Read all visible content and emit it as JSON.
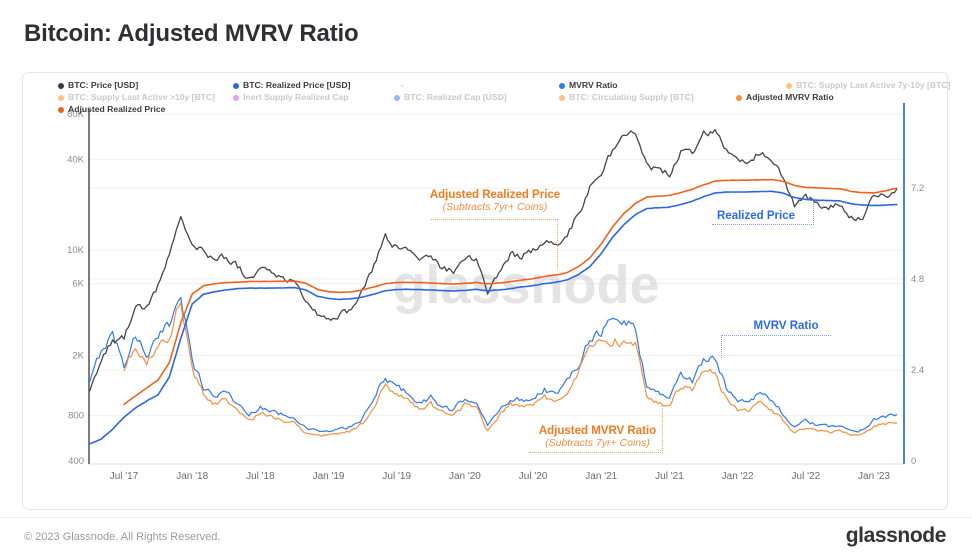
{
  "page": {
    "title": "Bitcoin: Adjusted MVRV Ratio",
    "watermark": "glassnode",
    "brand": "glassnode",
    "footer": "© 2023 Glassnode. All Rights Reserved."
  },
  "colors": {
    "btc_price": "#45454a",
    "realized_price": "#2d66e2",
    "adjusted_realized_price": "#f1621d",
    "mvrv": "#2f7af2",
    "adjusted_mvrv": "#f78f3f",
    "right_axis": "#4b7ff5",
    "left_axis": "#5a5a60",
    "grid": "#f0f0f2",
    "annotation_orange": "#f4791f",
    "annotation_blue": "#2b6af0"
  },
  "legend": {
    "items": [
      {
        "label": "BTC: Price [USD]",
        "color": "#3a3a3e",
        "active": true,
        "dot": true
      },
      {
        "label": "BTC: Realized Price [USD]",
        "color": "#2d66e2",
        "active": true,
        "dot": true
      },
      {
        "label": "-",
        "color": "#9a9aa0",
        "active": false,
        "dot": false
      },
      {
        "label": "MVRV Ratio",
        "color": "#2f7af2",
        "active": true,
        "dot": true
      },
      {
        "label": "BTC: Supply Last Active 7y-10y [BTC]",
        "color": "#f7931a",
        "active": false,
        "dot": true
      },
      {
        "label": "BTC: Supply Last Active >10y [BTC]",
        "color": "#f7931a",
        "active": false,
        "dot": true
      },
      {
        "label": "Inert Supply Realized Cap",
        "color": "#d14fe8",
        "active": false,
        "dot": true
      },
      {
        "label": "BTC: Realized Cap [USD]",
        "color": "#3b82f6",
        "active": false,
        "dot": true
      },
      {
        "label": "BTC: Circulating Supply [BTC]",
        "color": "#f7931a",
        "active": false,
        "dot": true
      },
      {
        "label": "Adjusted MVRV Ratio",
        "color": "#f78f3f",
        "active": true,
        "dot": true
      },
      {
        "label": "Adjusted Realized Price",
        "color": "#f1621d",
        "active": true,
        "dot": true
      }
    ]
  },
  "annotations": {
    "adjusted_realized_price": {
      "line1": "Adjusted Realized Price",
      "line2": "(Subtracts 7yr+ Coins)"
    },
    "realized_price": {
      "label": "Realized Price"
    },
    "mvrv": {
      "label": "MVRV Ratio"
    },
    "adjusted_mvrv": {
      "line1": "Adjusted MVRV Ratio",
      "line2": "(Subtracts 7yr+ Coins)"
    }
  },
  "chart_data": {
    "type": "line",
    "title": "Bitcoin: Adjusted MVRV Ratio",
    "x_ticks": [
      "Jul '17",
      "Jan '18",
      "Jul '18",
      "Jan '19",
      "Jul '19",
      "Jan '20",
      "Jul '20",
      "Jan '21",
      "Jul '21",
      "Jan '22",
      "Jul '22",
      "Jan '23"
    ],
    "y_axis_left": {
      "scale": "log",
      "unit": "USD",
      "ticks": [
        {
          "label": "80K",
          "value": 80000
        },
        {
          "label": "40K",
          "value": 40000
        },
        {
          "label": "10K",
          "value": 10000
        },
        {
          "label": "6K",
          "value": 6000
        },
        {
          "label": "2K",
          "value": 2000
        },
        {
          "label": "800",
          "value": 800
        },
        {
          "label": "400",
          "value": 400
        }
      ]
    },
    "y_axis_right": {
      "scale": "linear",
      "unit": "ratio",
      "ticks": [
        {
          "label": "7.2",
          "value": 7.2
        },
        {
          "label": "4.8",
          "value": 4.8
        },
        {
          "label": "2.4",
          "value": 2.4
        },
        {
          "label": "0",
          "value": 0
        }
      ]
    },
    "months": [
      "2017-04",
      "2017-05",
      "2017-06",
      "2017-07",
      "2017-08",
      "2017-09",
      "2017-10",
      "2017-11",
      "2017-12",
      "2018-01",
      "2018-02",
      "2018-03",
      "2018-04",
      "2018-05",
      "2018-06",
      "2018-07",
      "2018-08",
      "2018-09",
      "2018-10",
      "2018-11",
      "2018-12",
      "2019-01",
      "2019-02",
      "2019-03",
      "2019-04",
      "2019-05",
      "2019-06",
      "2019-07",
      "2019-08",
      "2019-09",
      "2019-10",
      "2019-11",
      "2019-12",
      "2020-01",
      "2020-02",
      "2020-03",
      "2020-04",
      "2020-05",
      "2020-06",
      "2020-07",
      "2020-08",
      "2020-09",
      "2020-10",
      "2020-11",
      "2020-12",
      "2021-01",
      "2021-02",
      "2021-03",
      "2021-04",
      "2021-05",
      "2021-06",
      "2021-07",
      "2021-08",
      "2021-09",
      "2021-10",
      "2021-11",
      "2021-12",
      "2022-01",
      "2022-02",
      "2022-03",
      "2022-04",
      "2022-05",
      "2022-06",
      "2022-07",
      "2022-08",
      "2022-09",
      "2022-10",
      "2022-11",
      "2022-12",
      "2023-01",
      "2023-02",
      "2023-03"
    ],
    "series": [
      {
        "name": "MVRV Ratio",
        "axis": "ratio",
        "style": "noisy",
        "color": "#2f7af2",
        "values": [
          2.05,
          2.95,
          3.35,
          2.55,
          3.3,
          2.85,
          3.2,
          3.6,
          4.55,
          2.6,
          1.95,
          1.7,
          1.85,
          1.5,
          1.2,
          1.45,
          1.3,
          1.22,
          1.18,
          0.85,
          0.8,
          0.77,
          0.84,
          0.9,
          1.12,
          1.62,
          2.25,
          1.92,
          1.82,
          1.52,
          1.68,
          1.42,
          1.32,
          1.66,
          1.6,
          0.9,
          1.33,
          1.65,
          1.6,
          1.68,
          1.9,
          1.75,
          2.08,
          2.6,
          3.3,
          3.45,
          3.7,
          3.65,
          3.55,
          1.95,
          1.8,
          1.7,
          2.3,
          2.1,
          2.7,
          2.65,
          1.95,
          1.6,
          1.62,
          1.82,
          1.6,
          1.25,
          0.88,
          1.05,
          0.95,
          0.9,
          0.95,
          0.78,
          0.82,
          1.12,
          1.18,
          1.2
        ]
      },
      {
        "name": "Adjusted MVRV Ratio",
        "axis": "ratio",
        "style": "noisy",
        "color": "#f78f3f",
        "values": [
          null,
          null,
          null,
          2.3,
          3.05,
          2.6,
          2.95,
          3.3,
          4.25,
          2.35,
          1.75,
          1.5,
          1.65,
          1.33,
          1.05,
          1.28,
          1.14,
          1.07,
          1.03,
          0.74,
          0.7,
          0.67,
          0.74,
          0.79,
          1.0,
          1.47,
          2.05,
          1.73,
          1.63,
          1.36,
          1.5,
          1.27,
          1.17,
          1.5,
          1.44,
          0.8,
          1.19,
          1.49,
          1.44,
          1.5,
          1.7,
          1.56,
          1.86,
          2.35,
          2.95,
          3.05,
          3.2,
          3.15,
          3.05,
          1.68,
          1.55,
          1.45,
          2.0,
          1.82,
          2.35,
          2.28,
          1.66,
          1.36,
          1.37,
          1.55,
          1.35,
          1.05,
          0.73,
          0.88,
          0.8,
          0.75,
          0.8,
          0.64,
          0.68,
          0.92,
          0.98,
          1.0
        ]
      },
      {
        "name": "BTC: Price [USD]",
        "axis": "price",
        "style": "noisy",
        "color": "#45454a",
        "values": [
          1200,
          1900,
          2500,
          2600,
          4300,
          4200,
          5700,
          9800,
          17500,
          11000,
          9800,
          8500,
          9100,
          7800,
          6400,
          7600,
          6900,
          6500,
          6400,
          4300,
          3800,
          3500,
          3800,
          4000,
          5200,
          8000,
          12300,
          10300,
          9900,
          8300,
          9100,
          7500,
          7200,
          9200,
          8900,
          5300,
          7100,
          9300,
          9200,
          9900,
          11600,
          10700,
          13000,
          17500,
          26000,
          33000,
          46000,
          57000,
          62000,
          37000,
          34000,
          32000,
          46000,
          44000,
          59000,
          62000,
          47000,
          38000,
          40000,
          44000,
          39500,
          30000,
          19500,
          22500,
          20500,
          19200,
          20000,
          16700,
          16600,
          22500,
          23200,
          24500
        ]
      },
      {
        "name": "BTC: Realized Price [USD]",
        "axis": "price",
        "style": "smooth",
        "color": "#2d66e2",
        "values": [
          520,
          560,
          650,
          780,
          900,
          1000,
          1100,
          1450,
          2600,
          4400,
          5100,
          5300,
          5450,
          5550,
          5600,
          5600,
          5600,
          5620,
          5650,
          5450,
          4950,
          4780,
          4720,
          4760,
          4900,
          5120,
          5380,
          5480,
          5500,
          5480,
          5450,
          5400,
          5360,
          5420,
          5500,
          5380,
          5450,
          5560,
          5700,
          5820,
          6000,
          6120,
          6350,
          6900,
          7800,
          9500,
          12200,
          14800,
          17200,
          18900,
          19100,
          19300,
          20100,
          21100,
          22600,
          23900,
          24300,
          24300,
          24350,
          24500,
          24600,
          23900,
          22400,
          21700,
          21500,
          21300,
          21200,
          20300,
          19900,
          19800,
          19900,
          20100
        ]
      },
      {
        "name": "Adjusted Realized Price",
        "axis": "price",
        "style": "smooth",
        "color": "#f1621d",
        "values": [
          null,
          null,
          null,
          950,
          1080,
          1220,
          1380,
          1800,
          3300,
          5100,
          5800,
          6000,
          6100,
          6150,
          6200,
          6200,
          6200,
          6220,
          6250,
          6050,
          5500,
          5300,
          5250,
          5290,
          5450,
          5700,
          6000,
          6100,
          6120,
          6100,
          6060,
          6000,
          5960,
          6020,
          6100,
          5980,
          6050,
          6180,
          6350,
          6480,
          6700,
          6850,
          7100,
          7800,
          8900,
          11000,
          14300,
          17500,
          20400,
          22500,
          22800,
          23100,
          24100,
          25300,
          27100,
          28700,
          29100,
          29100,
          29150,
          29300,
          29400,
          28600,
          26900,
          26100,
          25900,
          25700,
          25600,
          24500,
          24100,
          24000,
          24700,
          25800
        ]
      }
    ]
  }
}
